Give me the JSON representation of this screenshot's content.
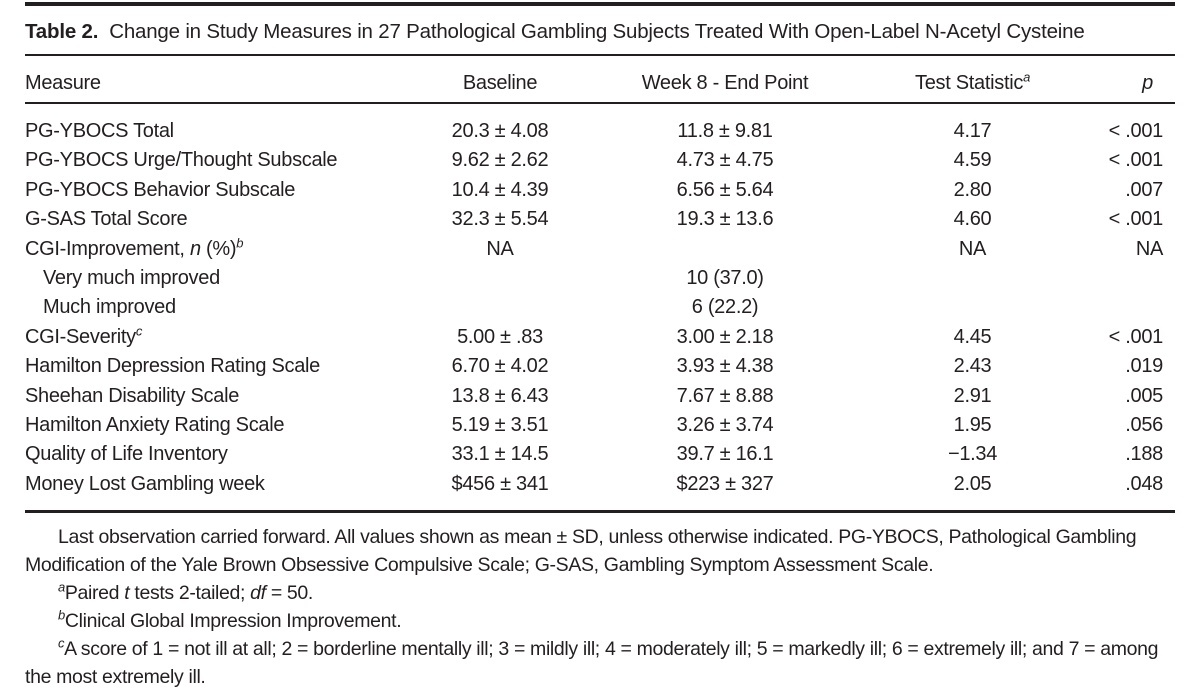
{
  "table": {
    "label": "Table 2.",
    "title": "Change in Study Measures in 27 Pathological Gambling Subjects Treated With Open-Label N-Acetyl Cysteine",
    "columns": [
      "Measure",
      "Baseline",
      "Week 8 - End Point",
      "Test Statistic^a^",
      "*p*"
    ],
    "rows": [
      {
        "measure": "PG-YBOCS Total",
        "baseline": "20.3 ± 4.08",
        "week8": "11.8 ± 9.81",
        "test": "4.17",
        "p": "< .001",
        "indent": false
      },
      {
        "measure": "PG-YBOCS Urge/Thought Subscale",
        "baseline": "9.62 ± 2.62",
        "week8": "4.73 ± 4.75",
        "test": "4.59",
        "p": "< .001",
        "indent": false
      },
      {
        "measure": "PG-YBOCS Behavior Subscale",
        "baseline": "10.4 ± 4.39",
        "week8": "6.56 ± 5.64",
        "test": "2.80",
        "p": ".007",
        "indent": false
      },
      {
        "measure": "G-SAS Total Score",
        "baseline": "32.3 ± 5.54",
        "week8": "19.3 ± 13.6",
        "test": "4.60",
        "p": "< .001",
        "indent": false
      },
      {
        "measure": "CGI-Improvement, *n* (%)^b^",
        "baseline": "NA",
        "week8": "",
        "test": "NA",
        "p": "NA",
        "indent": false
      },
      {
        "measure": "Very much improved",
        "baseline": "",
        "week8": "10 (37.0)",
        "test": "",
        "p": "",
        "indent": true
      },
      {
        "measure": "Much improved",
        "baseline": "",
        "week8": "6 (22.2)",
        "test": "",
        "p": "",
        "indent": true
      },
      {
        "measure": "CGI-Severity^c^",
        "baseline": "5.00 ± .83",
        "week8": "3.00 ± 2.18",
        "test": "4.45",
        "p": "< .001",
        "indent": false
      },
      {
        "measure": "Hamilton Depression Rating Scale",
        "baseline": "6.70 ± 4.02",
        "week8": "3.93 ± 4.38",
        "test": "2.43",
        "p": ".019",
        "indent": false
      },
      {
        "measure": "Sheehan Disability Scale",
        "baseline": "13.8 ± 6.43",
        "week8": "7.67 ± 8.88",
        "test": "2.91",
        "p": ".005",
        "indent": false
      },
      {
        "measure": "Hamilton Anxiety Rating Scale",
        "baseline": "5.19 ± 3.51",
        "week8": "3.26 ± 3.74",
        "test": "1.95",
        "p": ".056",
        "indent": false
      },
      {
        "measure": "Quality of Life Inventory",
        "baseline": "33.1 ± 14.5",
        "week8": "39.7 ± 16.1",
        "test": "−1.34",
        "p": ".188",
        "indent": false
      },
      {
        "measure": "Money Lost Gambling week",
        "baseline": "$456 ± 341",
        "week8": "$223 ± 327",
        "test": "2.05",
        "p": ".048",
        "indent": false
      }
    ]
  },
  "footnotes": [
    "Last observation carried forward. All values shown as mean ± SD, unless otherwise indicated. PG-YBOCS, Pathological Gambling Modification of the Yale Brown Obsessive Compulsive Scale; G-SAS, Gambling Symptom Assessment Scale.",
    "^a^Paired *t* tests 2-tailed; *df* = 50.",
    "^b^Clinical Global Impression Improvement.",
    "^c^A score of 1 = not ill at all; 2 = borderline mentally ill; 3 = mildly ill; 4 = moderately ill; 5 = markedly ill; 6 = extremely ill; and 7 = among the most extremely ill."
  ],
  "colors": {
    "text": "#231f20",
    "background": "#ffffff",
    "rule": "#231f20"
  }
}
